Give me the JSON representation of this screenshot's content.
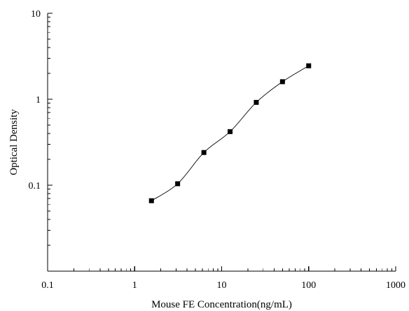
{
  "chart_data": {
    "type": "scatter",
    "title": "",
    "xlabel": "Mouse FE Concentration(ng/mL)",
    "ylabel": "Optical Density",
    "x_scale": "log",
    "y_scale": "log",
    "xlim": [
      0.1,
      1000
    ],
    "ylim": [
      0.01,
      10
    ],
    "x_ticks": [
      0.1,
      1,
      10,
      100,
      1000
    ],
    "x_tick_labels": [
      "0.1",
      "1",
      "10",
      "100",
      "1000"
    ],
    "y_ticks": [
      0.1,
      1,
      10
    ],
    "y_tick_labels": [
      "0.1",
      "1",
      "10"
    ],
    "grid": false,
    "legend": "none",
    "series": [
      {
        "x": [
          1.56,
          3.12,
          6.25,
          12.5,
          25,
          50,
          100
        ],
        "y": [
          0.066,
          0.104,
          0.24,
          0.42,
          0.92,
          1.6,
          2.45
        ],
        "marker": "square",
        "line": "smooth"
      }
    ],
    "colors": {
      "axes": "#000000",
      "markers": "#000000",
      "line": "#000000",
      "background": "#ffffff"
    }
  }
}
